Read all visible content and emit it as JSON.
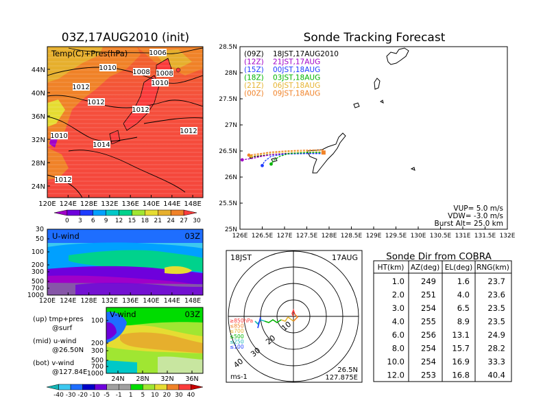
{
  "left_panel": {
    "title": "03Z,17AUG2010 (init)",
    "map_label": "Temp(C)+Pres(hPa)",
    "lat_ticks": [
      "44N",
      "40N",
      "36N",
      "32N",
      "28N",
      "24N"
    ],
    "lon_ticks": [
      "120E",
      "124E",
      "128E",
      "132E",
      "136E",
      "140E",
      "144E",
      "148E"
    ],
    "isobars": [
      "1006",
      "1010",
      "1008",
      "1008",
      "1012",
      "1010",
      "1012",
      "1012",
      "1010",
      "1014",
      "1012",
      "1012"
    ],
    "colorbar_ticks": [
      "0",
      "3",
      "6",
      "9",
      "12",
      "15",
      "18",
      "21",
      "24",
      "27",
      "30"
    ],
    "colorbar_colors": [
      "#a000c8",
      "#6e00dc",
      "#1e3cff",
      "#00a0ff",
      "#00c8c8",
      "#00d28c",
      "#a0e632",
      "#e6dc32",
      "#e6af2d",
      "#f08228",
      "#fa3c3c"
    ]
  },
  "uwind_panel": {
    "label": "U-wind",
    "time": "03Z",
    "y_ticks": [
      "30",
      "50",
      "100",
      "200",
      "300",
      "500",
      "700",
      "1000"
    ],
    "x_ticks": [
      "120E",
      "124E",
      "128E",
      "132E",
      "136E",
      "140E",
      "144E",
      "148E"
    ]
  },
  "vwind_panel": {
    "label": "V-wind",
    "time": "03Z",
    "y_ticks": [
      "100",
      "200",
      "300",
      "500",
      "700",
      "1000"
    ],
    "x_ticks": [
      "24N",
      "28N",
      "32N",
      "36N"
    ],
    "colorbar_ticks": [
      "-40",
      "-30",
      "-20",
      "-10",
      "-5",
      "-1",
      "1",
      "5",
      "10",
      "20",
      "30",
      "40"
    ],
    "colorbar_colors": [
      "#14b4b4",
      "#3cc8f0",
      "#1e6eff",
      "#0000c8",
      "#6e00dc",
      "#a0a0a0",
      "#a0a0a0",
      "#00dc00",
      "#a0e632",
      "#e6dc32",
      "#f08228",
      "#fa3c3c",
      "#c80000"
    ]
  },
  "legend_text": {
    "up": "(up) tmp+pres",
    "up2": "@surf",
    "mid": "(mid) u-wind",
    "mid2": "@26.50N",
    "bot": "(bot) v-wind",
    "bot2": "@127.84E"
  },
  "tracking": {
    "title": "Sonde Tracking Forecast",
    "lat_ticks": [
      "28.5N",
      "28N",
      "27.5N",
      "27N",
      "26.5N",
      "26N",
      "25.5N",
      "25N"
    ],
    "lon_ticks": [
      "126E",
      "126.5E",
      "127E",
      "127.5E",
      "128E",
      "128.5E",
      "129E",
      "129.5E",
      "130E",
      "130.5E",
      "131E",
      "131.5E",
      "132E"
    ],
    "forecasts": [
      {
        "code": "(09Z)",
        "label": "18JST,17AUG2010",
        "color": "#000000"
      },
      {
        "code": "(12Z)",
        "label": "21JST,17AUG",
        "color": "#a000c8"
      },
      {
        "code": "(15Z)",
        "label": "00JST,18AUG",
        "color": "#1e3cff"
      },
      {
        "code": "(18Z)",
        "label": "03JST,18AUG",
        "color": "#00b400"
      },
      {
        "code": "(21Z)",
        "label": "06JST,18AUG",
        "color": "#e6b432"
      },
      {
        "code": "(00Z)",
        "label": "09JST,18AUG",
        "color": "#f08228"
      }
    ],
    "vup": "VUP= 5.0 m/s",
    "vdw": "VDW= -3.0 m/s",
    "burst": "Burst Alt= 25.0 km"
  },
  "polar": {
    "time": "18JST",
    "date": "17AUG",
    "ring_labels": [
      "10",
      "20",
      "30",
      "40"
    ],
    "pressure_legend": [
      {
        "label": "≥850hPa",
        "color": "#fa3c3c"
      },
      {
        "label": "≤850",
        "color": "#f08228"
      },
      {
        "label": "≤700",
        "color": "#e6b432"
      },
      {
        "label": "≤500",
        "color": "#00b400"
      },
      {
        "label": "≤250",
        "color": "#14b4b4"
      },
      {
        "label": "≤100",
        "color": "#1e3cff"
      }
    ],
    "units": "ms-1",
    "loc_lat": "26.5N",
    "loc_lon": "127.875E"
  },
  "sonde_table": {
    "title": "Sonde Dir from COBRA",
    "headers": [
      "HT(km)",
      "AZ(deg)",
      "EL(deg)",
      "RNG(km)"
    ],
    "rows": [
      [
        "1.0",
        "249",
        "1.6",
        "23.7"
      ],
      [
        "2.0",
        "251",
        "4.0",
        "23.6"
      ],
      [
        "3.0",
        "254",
        "6.5",
        "23.5"
      ],
      [
        "4.0",
        "255",
        "8.9",
        "23.5"
      ],
      [
        "6.0",
        "256",
        "13.1",
        "24.9"
      ],
      [
        "8.0",
        "254",
        "15.7",
        "28.2"
      ],
      [
        "10.0",
        "254",
        "16.9",
        "33.3"
      ],
      [
        "12.0",
        "253",
        "16.8",
        "40.4"
      ]
    ]
  },
  "chart_data": [
    {
      "type": "heatmap",
      "title": "03Z,17AUG2010 (init)",
      "label": "Temp(C)+Pres(hPa)",
      "xlim": [
        120,
        150
      ],
      "ylim": [
        22,
        48
      ],
      "colorbar": [
        0,
        3,
        6,
        9,
        12,
        15,
        18,
        21,
        24,
        27,
        30
      ]
    },
    {
      "type": "line",
      "title": "Sonde Tracking Forecast",
      "xlim": [
        126,
        132
      ],
      "ylim": [
        25,
        28.5
      ],
      "series": [
        {
          "name": "(09Z) 18JST,17AUG2010",
          "x": [
            127.875,
            127.6,
            127.3,
            127.0,
            126.7,
            126.4,
            126.25
          ],
          "y": [
            26.47,
            26.47,
            26.46,
            26.45,
            26.43,
            26.4,
            26.38
          ]
        },
        {
          "name": "(12Z) 21JST,17AUG",
          "x": [
            127.875,
            127.6,
            127.2,
            126.8,
            126.5,
            126.3,
            126.05
          ],
          "y": [
            26.46,
            26.46,
            26.45,
            26.44,
            26.4,
            26.36,
            26.33
          ]
        },
        {
          "name": "(15Z) 00JST,18AUG",
          "x": [
            127.875,
            127.5,
            127.0,
            126.7,
            126.55,
            126.5
          ],
          "y": [
            26.45,
            26.45,
            26.44,
            26.4,
            26.3,
            26.22
          ]
        },
        {
          "name": "(18Z) 03JST,18AUG",
          "x": [
            127.875,
            127.5,
            127.1,
            126.9,
            126.75,
            126.7
          ],
          "y": [
            26.47,
            26.47,
            26.45,
            26.4,
            26.32,
            26.25
          ]
        },
        {
          "name": "(21Z) 06JST,18AUG",
          "x": [
            127.875,
            127.6,
            127.3,
            127.0,
            126.7,
            126.45,
            126.25
          ],
          "y": [
            26.5,
            26.5,
            26.49,
            26.48,
            26.46,
            26.43,
            26.4
          ]
        },
        {
          "name": "(00Z) 09JST,18AUG",
          "x": [
            127.875,
            127.6,
            127.3,
            127.0,
            126.7,
            126.45,
            126.2
          ],
          "y": [
            26.52,
            26.52,
            26.51,
            26.5,
            26.48,
            26.45,
            26.42
          ]
        }
      ]
    },
    {
      "type": "table",
      "title": "Sonde Dir from COBRA",
      "columns": [
        "HT(km)",
        "AZ(deg)",
        "EL(deg)",
        "RNG(km)"
      ]
    }
  ]
}
